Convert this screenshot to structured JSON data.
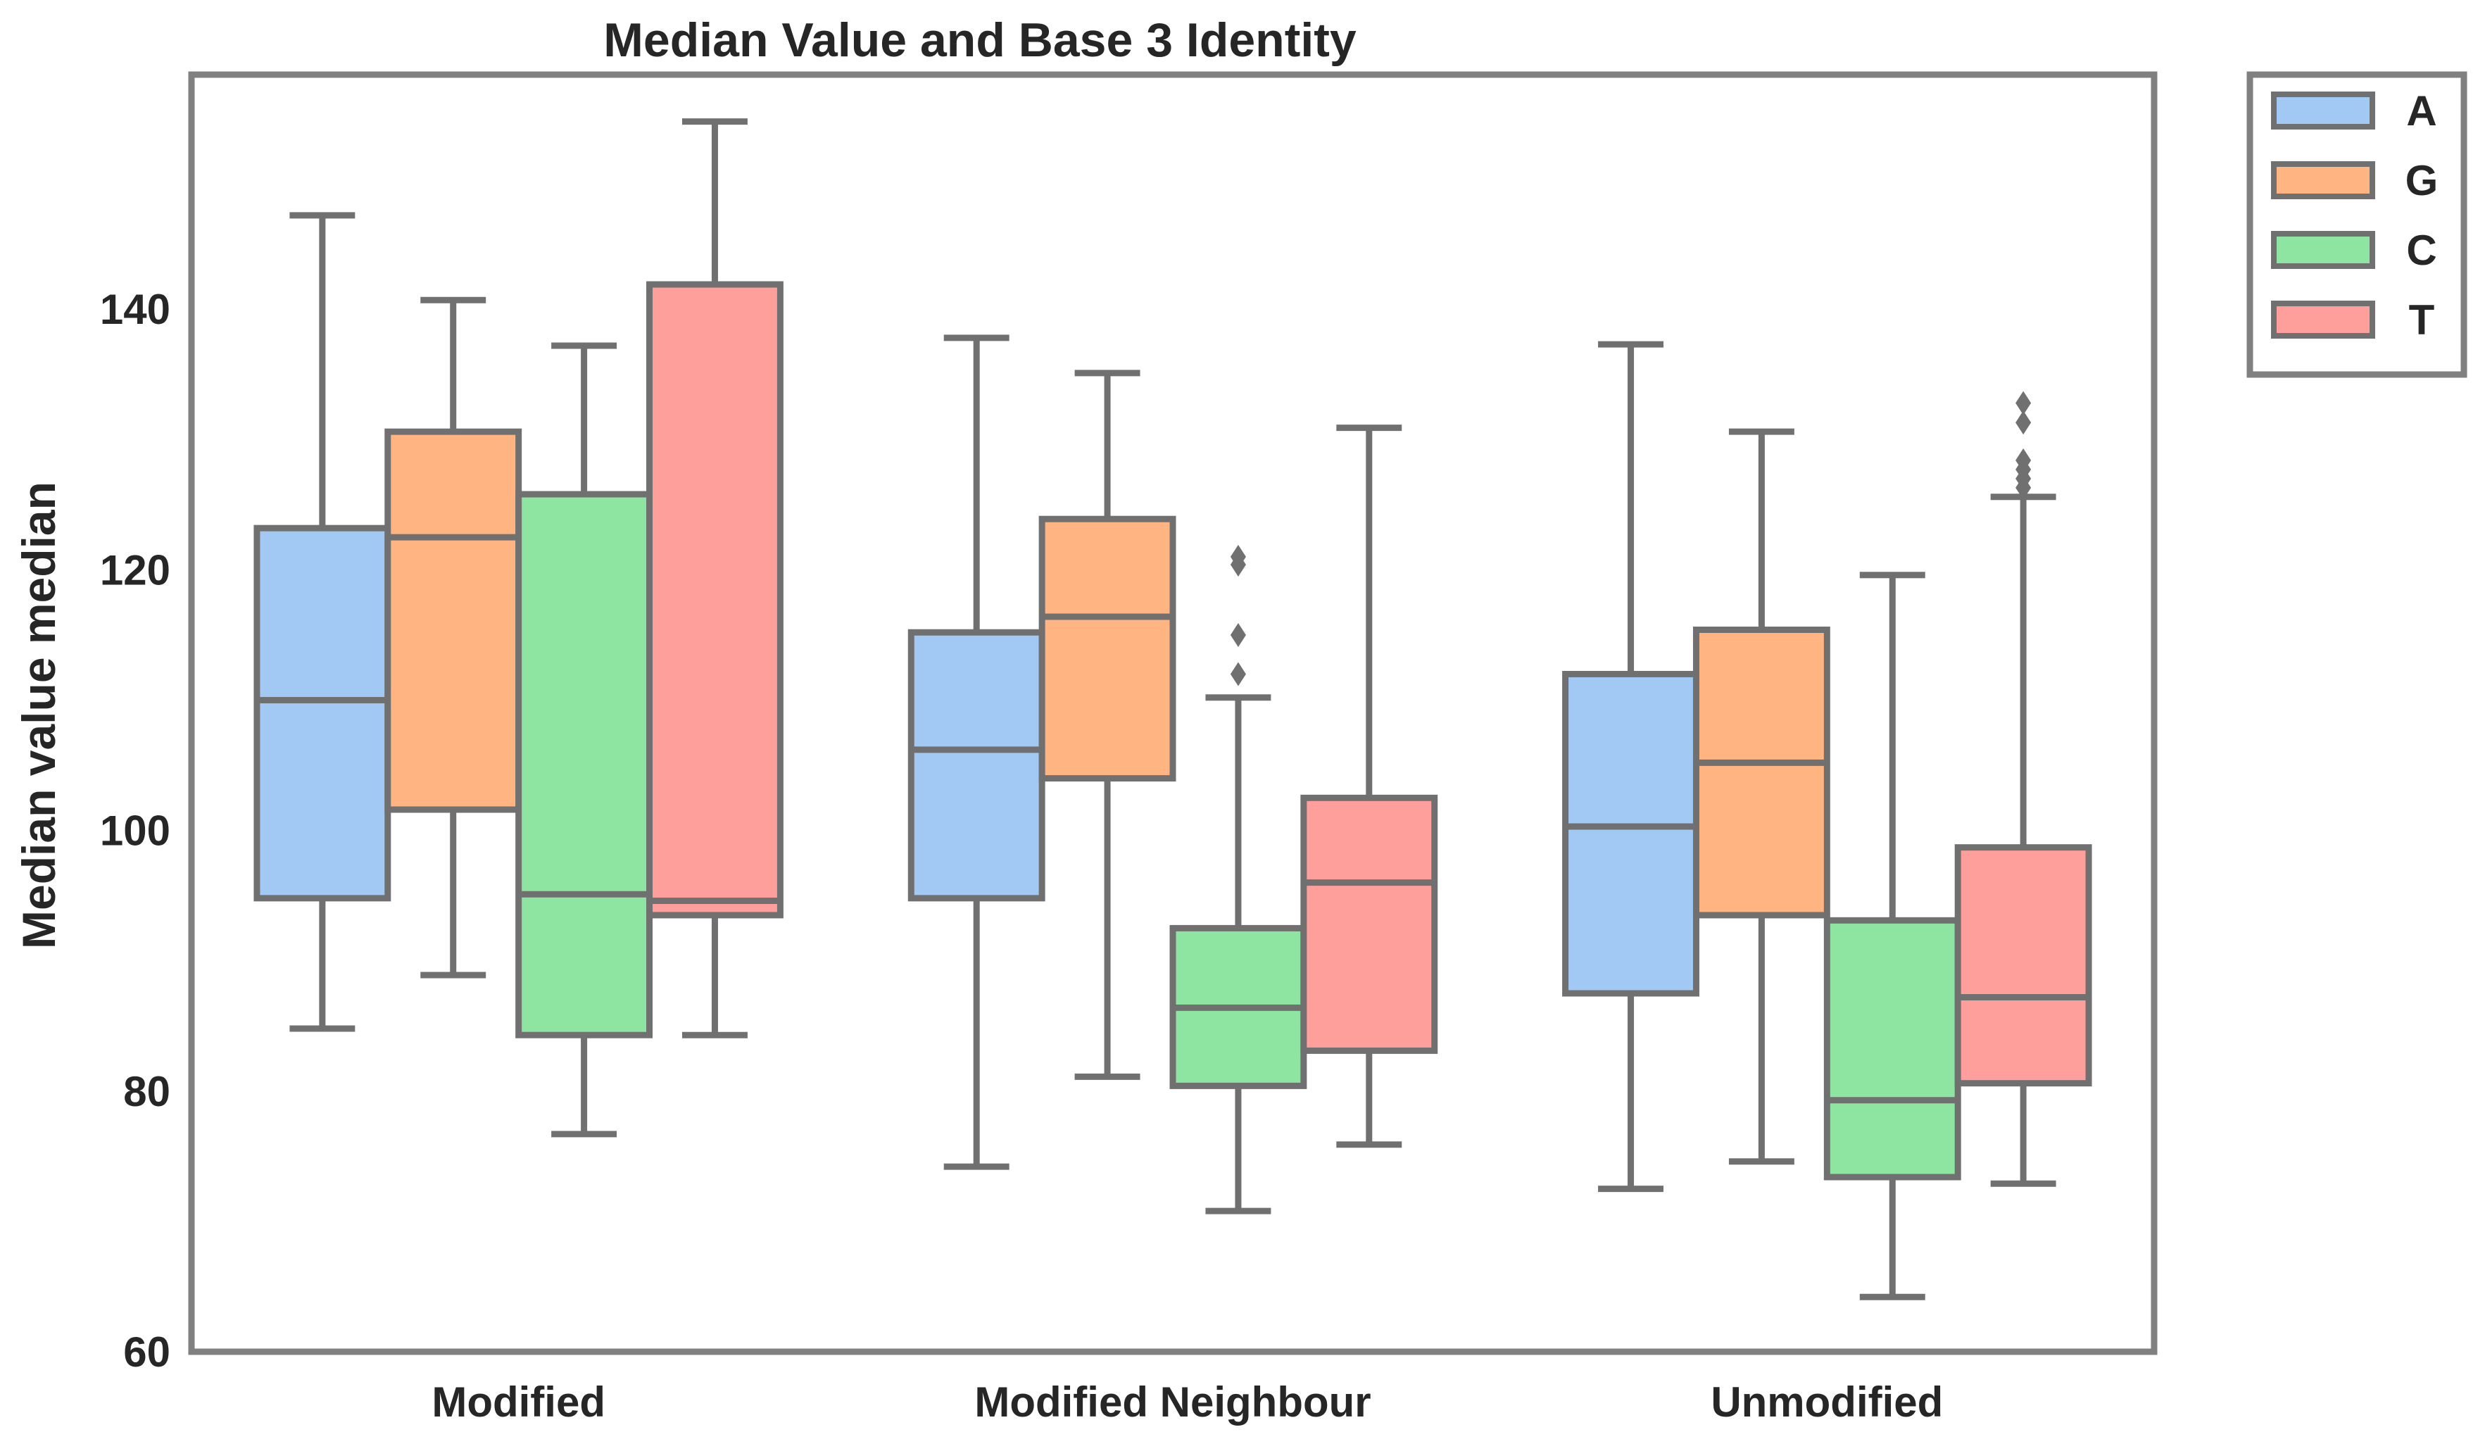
{
  "chart_data": {
    "type": "box",
    "title": "Median Value and Base 3 Identity",
    "xlabel": "",
    "ylabel": "Median value median",
    "ylim": [
      60,
      158
    ],
    "yticks": [
      60,
      80,
      100,
      120,
      140
    ],
    "grid": false,
    "legend": {
      "placement": "outside-top-right",
      "entries": [
        "A",
        "G",
        "C",
        "T"
      ]
    },
    "categories": [
      "Modified",
      "Modified Neighbour",
      "Unmodified"
    ],
    "series": [
      {
        "name": "A",
        "color": "#a1c9f4",
        "boxes": [
          {
            "whisker_low": 84.8,
            "q1": 94.8,
            "median": 110.0,
            "q3": 123.2,
            "whisker_high": 147.2,
            "outliers": []
          },
          {
            "whisker_low": 74.2,
            "q1": 94.8,
            "median": 106.2,
            "q3": 115.2,
            "whisker_high": 137.8,
            "outliers": []
          },
          {
            "whisker_low": 72.5,
            "q1": 87.5,
            "median": 100.3,
            "q3": 112.0,
            "whisker_high": 137.3,
            "outliers": []
          }
        ]
      },
      {
        "name": "G",
        "color": "#ffb482",
        "boxes": [
          {
            "whisker_low": 88.9,
            "q1": 101.6,
            "median": 122.5,
            "q3": 130.6,
            "whisker_high": 140.7,
            "outliers": []
          },
          {
            "whisker_low": 81.1,
            "q1": 104.0,
            "median": 116.4,
            "q3": 123.9,
            "whisker_high": 135.1,
            "outliers": []
          },
          {
            "whisker_low": 74.6,
            "q1": 93.5,
            "median": 105.2,
            "q3": 115.4,
            "whisker_high": 130.6,
            "outliers": []
          }
        ]
      },
      {
        "name": "C",
        "color": "#8de5a1",
        "boxes": [
          {
            "whisker_low": 76.7,
            "q1": 84.3,
            "median": 95.1,
            "q3": 125.8,
            "whisker_high": 137.2,
            "outliers": []
          },
          {
            "whisker_low": 70.8,
            "q1": 80.4,
            "median": 86.4,
            "q3": 92.5,
            "whisker_high": 110.2,
            "outliers": [
              112.0,
              115.0,
              120.4,
              121.0
            ]
          },
          {
            "whisker_low": 64.2,
            "q1": 73.4,
            "median": 79.3,
            "q3": 93.1,
            "whisker_high": 119.6,
            "outliers": []
          }
        ]
      },
      {
        "name": "T",
        "color": "#ff9f9b",
        "boxes": [
          {
            "whisker_low": 84.3,
            "q1": 93.5,
            "median": 94.6,
            "q3": 141.9,
            "whisker_high": 154.4,
            "outliers": []
          },
          {
            "whisker_low": 75.9,
            "q1": 83.1,
            "median": 96.0,
            "q3": 102.5,
            "whisker_high": 130.9,
            "outliers": []
          },
          {
            "whisker_low": 72.9,
            "q1": 80.6,
            "median": 87.2,
            "q3": 98.7,
            "whisker_high": 125.6,
            "outliers": [
              126.3,
              127.0,
              127.7,
              128.4,
              131.3,
              132.8
            ]
          }
        ]
      }
    ]
  }
}
